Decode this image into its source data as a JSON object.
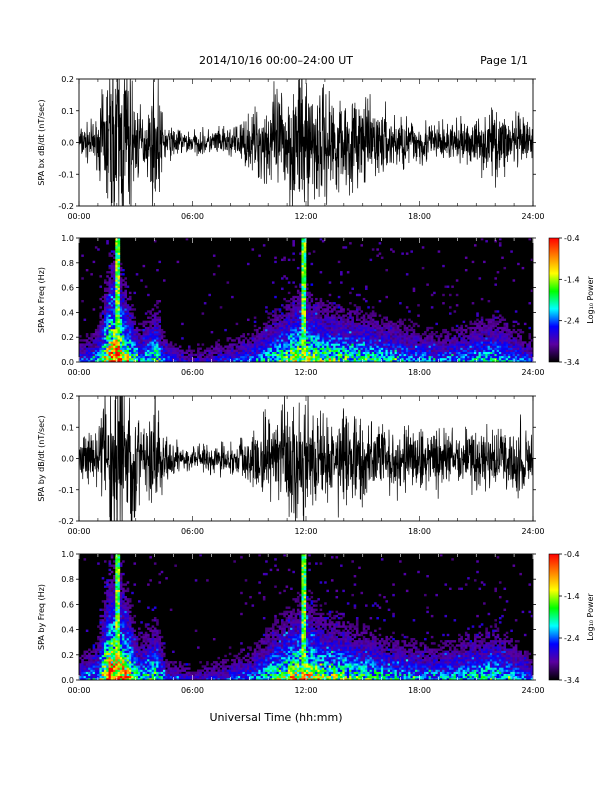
{
  "header": {
    "title": "2014/10/16  00:00–24:00 UT",
    "page": "Page 1/1"
  },
  "footer": {
    "xlabel": "Universal Time (hh:mm)"
  },
  "colors": {
    "background": "#ffffff",
    "trace": "#000000",
    "colormap": [
      "#000000",
      "#5a00a0",
      "#0000ff",
      "#00ffff",
      "#00ff00",
      "#ffff00",
      "#ff8000",
      "#ff0000"
    ]
  },
  "chart_data": [
    {
      "type": "line",
      "ylabel": "SPA bx dB/dt (nT/sec)",
      "x_ticks": [
        "00:00",
        "06:00",
        "12:00",
        "18:00",
        "24:00"
      ],
      "x_range_hours": [
        0,
        24
      ],
      "ylim": [
        -0.2,
        0.2
      ],
      "y_ticks": [
        "0.2",
        "0.1",
        "0.0",
        "-0.1",
        "-0.2"
      ],
      "series": [
        {
          "envelope": [
            {
              "t": 0,
              "amp": 0.04
            },
            {
              "t": 1.0,
              "amp": 0.06
            },
            {
              "t": 1.5,
              "amp": 0.2
            },
            {
              "t": 2.0,
              "amp": 0.25
            },
            {
              "t": 2.5,
              "amp": 0.25
            },
            {
              "t": 3.0,
              "amp": 0.12
            },
            {
              "t": 3.5,
              "amp": 0.06
            },
            {
              "t": 4.1,
              "amp": 0.18
            },
            {
              "t": 4.5,
              "amp": 0.05
            },
            {
              "t": 5.0,
              "amp": 0.04
            },
            {
              "t": 6.0,
              "amp": 0.03
            },
            {
              "t": 8.0,
              "amp": 0.04
            },
            {
              "t": 9.0,
              "amp": 0.07
            },
            {
              "t": 10.0,
              "amp": 0.12
            },
            {
              "t": 11.0,
              "amp": 0.16
            },
            {
              "t": 11.9,
              "amp": 0.2
            },
            {
              "t": 12.5,
              "amp": 0.16
            },
            {
              "t": 13.5,
              "amp": 0.14
            },
            {
              "t": 15.0,
              "amp": 0.11
            },
            {
              "t": 16.5,
              "amp": 0.08
            },
            {
              "t": 18.0,
              "amp": 0.06
            },
            {
              "t": 20.0,
              "amp": 0.05
            },
            {
              "t": 22.0,
              "amp": 0.09
            },
            {
              "t": 23.0,
              "amp": 0.08
            },
            {
              "t": 24.0,
              "amp": 0.04
            }
          ]
        }
      ]
    },
    {
      "type": "heatmap",
      "ylabel": "SPA bx Freq (Hz)",
      "x_ticks": [
        "00:00",
        "06:00",
        "12:00",
        "18:00",
        "24:00"
      ],
      "x_range_hours": [
        0,
        24
      ],
      "ylim": [
        0,
        1.0
      ],
      "y_ticks": [
        "1.0",
        "0.8",
        "0.6",
        "0.4",
        "0.2",
        "0.0"
      ],
      "colorbar": {
        "label": "Log₁₀ Power",
        "ticks": [
          "-0.4",
          "-1.4",
          "-2.4",
          "-3.4"
        ],
        "range": [
          -3.4,
          -0.4
        ]
      },
      "activity": [
        {
          "t": 0,
          "level": 0.3
        },
        {
          "t": 1.0,
          "level": 0.4
        },
        {
          "t": 1.6,
          "level": 0.9
        },
        {
          "t": 2.0,
          "level": 1.0
        },
        {
          "t": 2.6,
          "level": 0.7
        },
        {
          "t": 3.2,
          "level": 0.4
        },
        {
          "t": 4.1,
          "level": 0.6
        },
        {
          "t": 4.6,
          "level": 0.3
        },
        {
          "t": 6.0,
          "level": 0.2
        },
        {
          "t": 9.0,
          "level": 0.35
        },
        {
          "t": 10.5,
          "level": 0.55
        },
        {
          "t": 11.9,
          "level": 0.75
        },
        {
          "t": 13.0,
          "level": 0.6
        },
        {
          "t": 15.0,
          "level": 0.55
        },
        {
          "t": 17.0,
          "level": 0.45
        },
        {
          "t": 19.0,
          "level": 0.35
        },
        {
          "t": 22.0,
          "level": 0.5
        },
        {
          "t": 24.0,
          "level": 0.3
        }
      ],
      "spikes": [
        {
          "t": 2.0,
          "fmax": 1.0
        },
        {
          "t": 11.85,
          "fmax": 1.0
        }
      ]
    },
    {
      "type": "line",
      "ylabel": "SPA by dB/dt (nT/sec)",
      "x_ticks": [
        "00:00",
        "06:00",
        "12:00",
        "18:00",
        "24:00"
      ],
      "x_range_hours": [
        0,
        24
      ],
      "ylim": [
        -0.2,
        0.2
      ],
      "y_ticks": [
        "0.2",
        "0.1",
        "0.0",
        "-0.1",
        "-0.2"
      ],
      "series": [
        {
          "envelope": [
            {
              "t": 0,
              "amp": 0.05
            },
            {
              "t": 1.0,
              "amp": 0.08
            },
            {
              "t": 1.5,
              "amp": 0.25
            },
            {
              "t": 2.0,
              "amp": 0.25
            },
            {
              "t": 2.6,
              "amp": 0.25
            },
            {
              "t": 3.0,
              "amp": 0.12
            },
            {
              "t": 3.5,
              "amp": 0.07
            },
            {
              "t": 4.1,
              "amp": 0.2
            },
            {
              "t": 4.5,
              "amp": 0.06
            },
            {
              "t": 5.5,
              "amp": 0.03
            },
            {
              "t": 8.0,
              "amp": 0.04
            },
            {
              "t": 9.0,
              "amp": 0.08
            },
            {
              "t": 10.0,
              "amp": 0.12
            },
            {
              "t": 11.0,
              "amp": 0.14
            },
            {
              "t": 11.9,
              "amp": 0.18
            },
            {
              "t": 13.0,
              "amp": 0.12
            },
            {
              "t": 15.0,
              "amp": 0.12
            },
            {
              "t": 17.0,
              "amp": 0.09
            },
            {
              "t": 19.0,
              "amp": 0.08
            },
            {
              "t": 22.0,
              "amp": 0.08
            },
            {
              "t": 23.3,
              "amp": 0.12
            },
            {
              "t": 24.0,
              "amp": 0.05
            }
          ]
        }
      ]
    },
    {
      "type": "heatmap",
      "ylabel": "SPA by Freq (Hz)",
      "x_ticks": [
        "00:00",
        "06:00",
        "12:00",
        "18:00",
        "24:00"
      ],
      "x_range_hours": [
        0,
        24
      ],
      "ylim": [
        0,
        1.0
      ],
      "y_ticks": [
        "1.0",
        "0.8",
        "0.6",
        "0.4",
        "0.2",
        "0.0"
      ],
      "colorbar": {
        "label": "Log₁₀ Power",
        "ticks": [
          "-0.4",
          "-1.4",
          "-2.4",
          "-3.4"
        ],
        "range": [
          -3.4,
          -0.4
        ]
      },
      "activity": [
        {
          "t": 0,
          "level": 0.3
        },
        {
          "t": 1.0,
          "level": 0.45
        },
        {
          "t": 1.6,
          "level": 1.0
        },
        {
          "t": 2.0,
          "level": 1.0
        },
        {
          "t": 2.6,
          "level": 0.8
        },
        {
          "t": 3.2,
          "level": 0.45
        },
        {
          "t": 4.1,
          "level": 0.6
        },
        {
          "t": 4.6,
          "level": 0.3
        },
        {
          "t": 6.0,
          "level": 0.2
        },
        {
          "t": 9.0,
          "level": 0.35
        },
        {
          "t": 10.5,
          "level": 0.6
        },
        {
          "t": 11.9,
          "level": 0.8
        },
        {
          "t": 13.0,
          "level": 0.65
        },
        {
          "t": 15.0,
          "level": 0.55
        },
        {
          "t": 17.0,
          "level": 0.45
        },
        {
          "t": 19.0,
          "level": 0.4
        },
        {
          "t": 22.0,
          "level": 0.55
        },
        {
          "t": 24.0,
          "level": 0.3
        }
      ],
      "spikes": [
        {
          "t": 2.0,
          "fmax": 1.0
        },
        {
          "t": 11.85,
          "fmax": 1.0
        }
      ]
    }
  ]
}
